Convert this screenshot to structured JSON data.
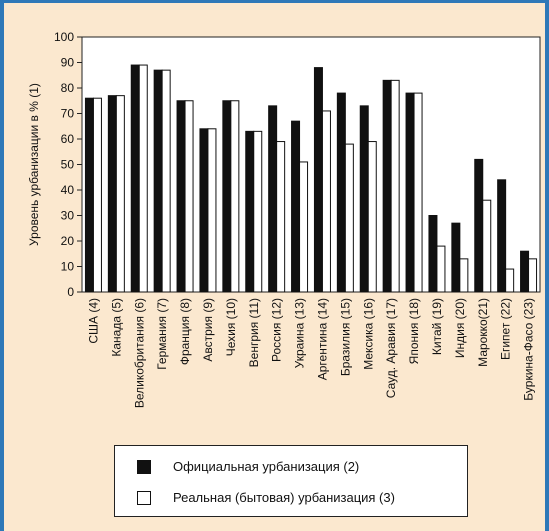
{
  "chart_data": {
    "type": "bar",
    "ylabel": "Уровень урбанизации в % (1)",
    "ylim": [
      0,
      100
    ],
    "yticks": [
      0,
      10,
      20,
      30,
      40,
      50,
      60,
      70,
      80,
      90,
      100
    ],
    "grid": false,
    "legend_position": "bottom",
    "categories": [
      "США (4)",
      "Канада (5)",
      "Великобритания (6)",
      "Германия (7)",
      "Франция (8)",
      "Австрия (9)",
      "Чехия (10)",
      "Венгрия (11)",
      "Россия (12)",
      "Украина (13)",
      "Аргентина (14)",
      "Бразилия (15)",
      "Мексика (16)",
      "Сауд. Аравия (17)",
      "Япония (18)",
      "Китай (19)",
      "Индия (20)",
      "Марокко(21)",
      "Египет (22)",
      "Буркина-Фасо (23)"
    ],
    "series": [
      {
        "name": "Официальная урбанизация (2)",
        "color": "#111111",
        "values": [
          76,
          77,
          89,
          87,
          75,
          64,
          75,
          63,
          73,
          67,
          88,
          78,
          73,
          83,
          78,
          30,
          27,
          52,
          44,
          16
        ]
      },
      {
        "name": "Реальная (бытовая) урбанизация (3)",
        "color": "#ffffff",
        "values": [
          76,
          77,
          89,
          87,
          75,
          64,
          75,
          63,
          59,
          51,
          71,
          58,
          59,
          83,
          78,
          18,
          13,
          36,
          9,
          13
        ]
      }
    ]
  }
}
